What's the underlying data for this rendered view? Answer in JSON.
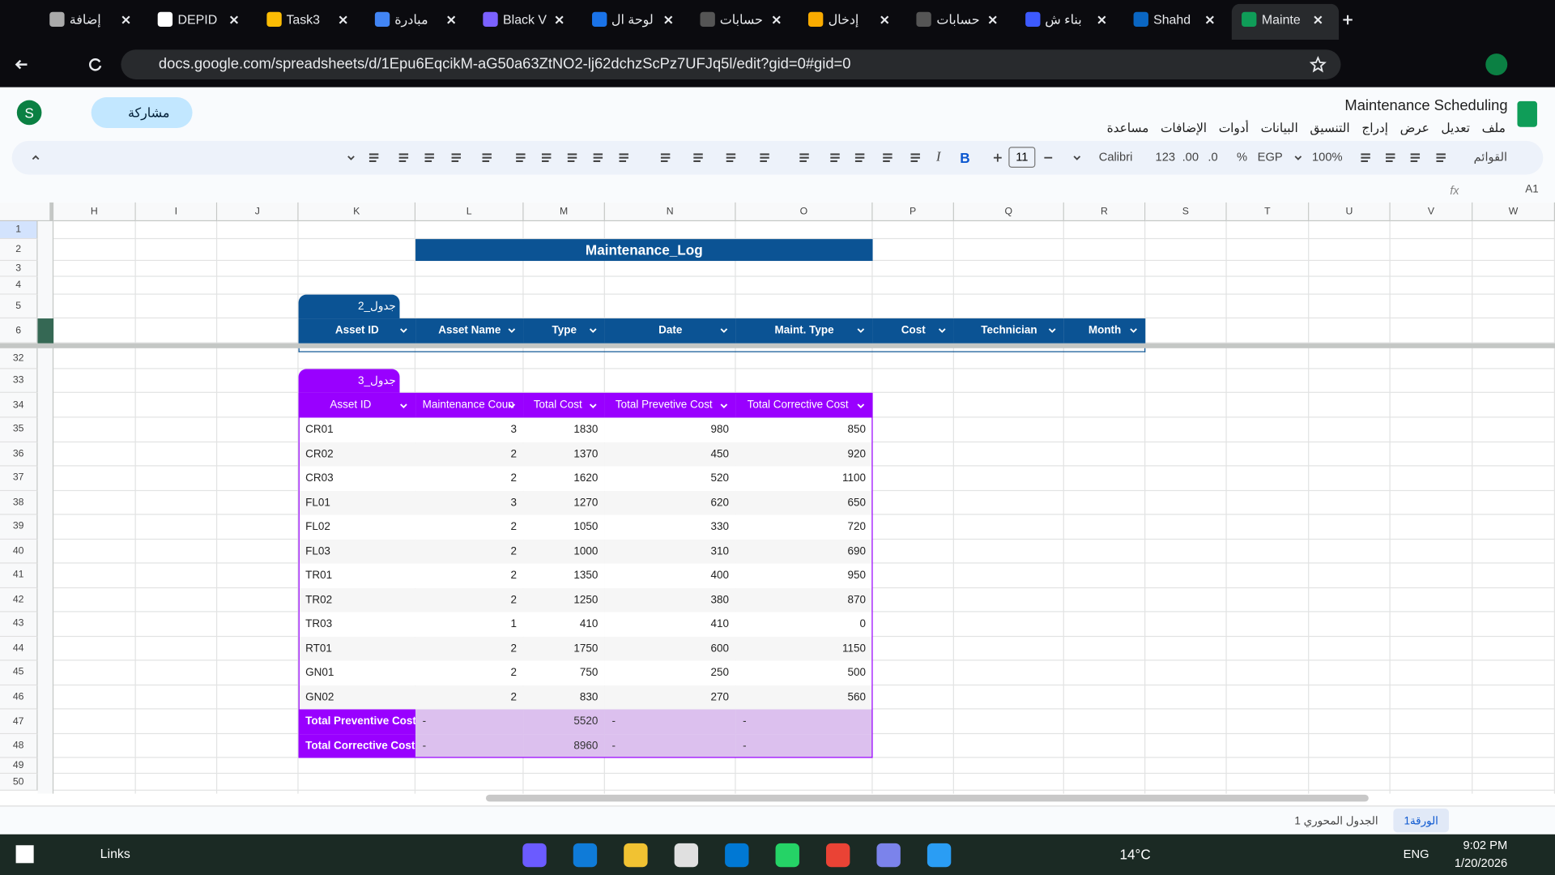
{
  "browser": {
    "tabs": [
      "إضافة",
      "DEPID",
      "Task3",
      "مبادرة",
      "Black V",
      "لوحة ال",
      "حسابات",
      "إدخال",
      "حسابات",
      "بناء ش",
      "Shahd",
      "Mainte"
    ],
    "url": "docs.google.com/spreadsheets/d/1Epu6EqcikM-aG50a63ZtNO2-lj62dchzScPz7UFJq5l/edit?gid=0#gid=0"
  },
  "doc": {
    "title": "Maintenance Scheduling",
    "menus": [
      "ملف",
      "تعديل",
      "عرض",
      "إدراج",
      "التنسيق",
      "البيانات",
      "أدوات",
      "الإضافات",
      "مساعدة"
    ],
    "share": "مشاركة",
    "avatar": "S"
  },
  "toolbar": {
    "search": "القوائم",
    "zoom": "100%",
    "currency": "EGP",
    "percent": "%",
    "decimals_dec": ".0",
    "decimals_inc": ".00",
    "format": "123",
    "font": "Calibri",
    "size": "11",
    "bold": "B",
    "italic": "I"
  },
  "formula_bar": {
    "cell": "A1",
    "fx": "fx"
  },
  "columns": [
    "H",
    "I",
    "J",
    "K",
    "L",
    "M",
    "N",
    "O",
    "P",
    "Q",
    "R",
    "S",
    "T",
    "U",
    "V",
    "W"
  ],
  "rows": [
    "1",
    "2",
    "3",
    "4",
    "5",
    "6",
    "32",
    "33",
    "34",
    "35",
    "36",
    "37",
    "38",
    "39",
    "40",
    "41",
    "42",
    "43",
    "44",
    "45",
    "46",
    "47",
    "48",
    "49",
    "50"
  ],
  "table2": {
    "title": "Maintenance_Log",
    "name": "جدول_2",
    "headers": [
      "Asset ID",
      "Asset Name",
      "Type",
      "Date",
      "Maint. Type",
      "Cost",
      "Technician",
      "Month"
    ]
  },
  "table3": {
    "name": "جدول_3",
    "headers": [
      "Asset ID",
      "Maintenance Coun",
      "Total Cost",
      "Total Prevetive Cost",
      "Total Corrective Cost"
    ],
    "rows": [
      [
        "CR01",
        3,
        1830,
        980,
        850
      ],
      [
        "CR02",
        2,
        1370,
        450,
        920
      ],
      [
        "CR03",
        2,
        1620,
        520,
        1100
      ],
      [
        "FL01",
        3,
        1270,
        620,
        650
      ],
      [
        "FL02",
        2,
        1050,
        330,
        720
      ],
      [
        "FL03",
        2,
        1000,
        310,
        690
      ],
      [
        "TR01",
        2,
        1350,
        400,
        950
      ],
      [
        "TR02",
        2,
        1250,
        380,
        870
      ],
      [
        "TR03",
        1,
        410,
        410,
        0
      ],
      [
        "RT01",
        2,
        1750,
        600,
        1150
      ],
      [
        "GN01",
        2,
        750,
        250,
        500
      ],
      [
        "GN02",
        2,
        830,
        270,
        560
      ]
    ],
    "totals": [
      [
        "Total Preventive Cost",
        "-",
        5520,
        "-",
        "-"
      ],
      [
        "Total Corrective Cost",
        "-",
        8960,
        "-",
        "-"
      ]
    ]
  },
  "sheets": [
    "الورقة1",
    "الجدول المحوري 1"
  ],
  "taskbar": {
    "search": "Links",
    "weather": "14°C",
    "lang": "ENG",
    "time": "9:02 PM",
    "date": "1/20/2026"
  }
}
